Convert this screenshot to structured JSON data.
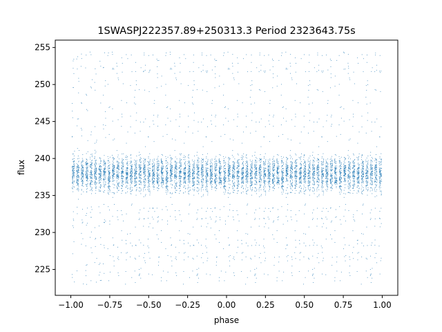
{
  "chart_data": {
    "type": "scatter",
    "title": "1SWASPJ222357.89+250313.3 Period 2323643.75s",
    "xlabel": "phase",
    "ylabel": "flux",
    "xlim": [
      -1.1,
      1.1
    ],
    "ylim": [
      221.5,
      256
    ],
    "x_ticks": [
      -1.0,
      -0.75,
      -0.5,
      -0.25,
      0.0,
      0.25,
      0.5,
      0.75,
      1.0
    ],
    "x_tick_labels": [
      "−1.00",
      "−0.75",
      "−0.50",
      "−0.25",
      "0.00",
      "0.25",
      "0.50",
      "0.75",
      "1.00"
    ],
    "y_ticks": [
      225,
      230,
      235,
      240,
      245,
      250,
      255
    ],
    "y_tick_labels": [
      "225",
      "230",
      "235",
      "240",
      "245",
      "250",
      "255"
    ],
    "grid": false,
    "marker_color": "#1f77b4",
    "series": [
      {
        "phase_range": [
          -1.0,
          1.0
        ],
        "flux_core_range": [
          234.5,
          242
        ],
        "flux_median": 238,
        "flux_outlier_range": [
          223,
          254.5
        ],
        "note_visual": "dense vertical streaks of tiny points"
      }
    ]
  }
}
